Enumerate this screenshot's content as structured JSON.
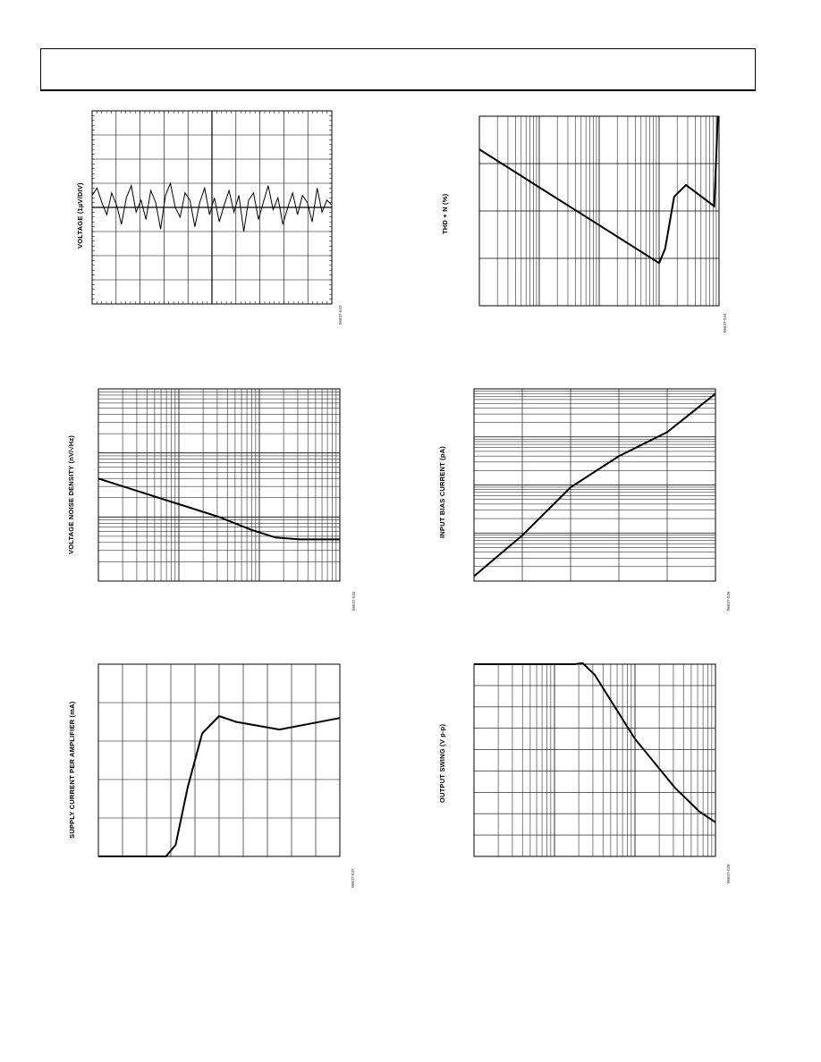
{
  "page": {
    "header_text": ""
  },
  "panels": [
    {
      "id": "p1",
      "ylabel": "VOLTAGE (1µV/DIV)",
      "fig_id": "06837-033",
      "chart_data": {
        "type": "line",
        "x_scale": "linear",
        "y_scale": "linear",
        "x_grid_divisions": 10,
        "y_grid_divisions": 8,
        "grid": true,
        "series": [
          {
            "values": [
              0.5,
              0.8,
              0.2,
              -0.3,
              0.6,
              0.1,
              -0.7,
              0.4,
              0.9,
              -0.2,
              0.3,
              -0.5,
              0.7,
              0.2,
              -0.9,
              0.5,
              1.0,
              0.0,
              -0.4,
              0.6,
              0.3,
              -0.8,
              0.2,
              0.8,
              -0.3,
              0.4,
              -0.6,
              0.1,
              0.7,
              -0.2,
              0.5,
              -1.0,
              0.3,
              0.6,
              -0.5,
              0.2,
              0.9,
              -0.1,
              0.4,
              -0.7,
              0.0,
              0.6,
              -0.3,
              0.5,
              0.2,
              -0.6,
              0.8,
              -0.2,
              0.3,
              0.1
            ]
          }
        ]
      }
    },
    {
      "id": "p2",
      "ylabel": "THD + N (%)",
      "fig_id": "06837-034",
      "chart_data": {
        "type": "line",
        "x_scale": "log",
        "y_scale": "log",
        "x_decades": 4,
        "y_decades": 4,
        "grid": true,
        "series": [
          {
            "points": [
              [
                0,
                3.3
              ],
              [
                3.0,
                0.9
              ],
              [
                3.1,
                1.2
              ],
              [
                3.25,
                2.3
              ],
              [
                3.45,
                2.55
              ],
              [
                3.92,
                2.1
              ],
              [
                3.98,
                4.0
              ]
            ]
          }
        ]
      }
    },
    {
      "id": "p3",
      "ylabel": "VOLTAGE NOISE DENSITY (nV/√Hz)",
      "fig_id": "06837-035",
      "chart_data": {
        "type": "line",
        "x_scale": "log",
        "y_scale": "log",
        "x_decades": 3,
        "y_decades": 3,
        "grid": true,
        "series": [
          {
            "points": [
              [
                0,
                1.6
              ],
              [
                0.5,
                1.4
              ],
              [
                1.0,
                1.2
              ],
              [
                1.5,
                1.0
              ],
              [
                1.9,
                0.8
              ],
              [
                2.2,
                0.68
              ],
              [
                2.5,
                0.65
              ],
              [
                3.0,
                0.65
              ]
            ]
          }
        ]
      }
    },
    {
      "id": "p4",
      "ylabel": "INPUT BIAS CURRENT (pA)",
      "fig_id": "06837-036",
      "chart_data": {
        "type": "line",
        "x_scale": "linear",
        "y_scale": "log",
        "x_grid_divisions": 5,
        "y_decades": 4,
        "grid": true,
        "series": [
          {
            "points": [
              [
                0,
                0.1
              ],
              [
                1.0,
                0.95
              ],
              [
                2.0,
                1.95
              ],
              [
                3.0,
                2.6
              ],
              [
                4.0,
                3.1
              ],
              [
                5.0,
                3.9
              ]
            ]
          }
        ]
      }
    },
    {
      "id": "p5",
      "ylabel": "SUPPLY CURRENT PER AMPLIFIER (mA)",
      "fig_id": "06837-037",
      "chart_data": {
        "type": "line",
        "x_scale": "linear",
        "y_scale": "linear",
        "x_grid_divisions": 10,
        "y_grid_divisions": 5,
        "grid": true,
        "series": [
          {
            "points": [
              [
                0,
                0
              ],
              [
                2.8,
                0
              ],
              [
                3.2,
                0.3
              ],
              [
                3.7,
                1.8
              ],
              [
                4.3,
                3.2
              ],
              [
                5.0,
                3.65
              ],
              [
                5.7,
                3.5
              ],
              [
                7.5,
                3.3
              ],
              [
                10,
                3.6
              ]
            ]
          }
        ]
      }
    },
    {
      "id": "p6",
      "ylabel": "OUTPUT SWING (V p-p)",
      "fig_id": "06837-038",
      "chart_data": {
        "type": "line",
        "x_scale": "log",
        "y_scale": "linear",
        "x_decades": 3,
        "y_grid_divisions": 9,
        "grid": true,
        "series": [
          {
            "points": [
              [
                0,
                9.0
              ],
              [
                1.25,
                9.0
              ],
              [
                1.35,
                9.05
              ],
              [
                1.5,
                8.5
              ],
              [
                2.0,
                5.5
              ],
              [
                2.5,
                3.2
              ],
              [
                2.8,
                2.1
              ],
              [
                3.0,
                1.6
              ]
            ]
          }
        ]
      }
    }
  ]
}
